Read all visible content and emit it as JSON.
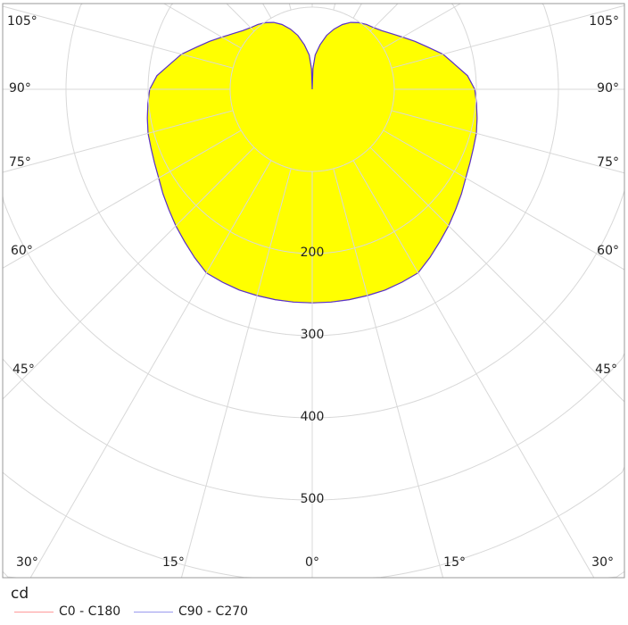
{
  "chart_data": {
    "type": "polar",
    "unit_label": "cd",
    "radial_ticks": [
      200,
      300,
      400,
      500
    ],
    "radial_grid": [
      100,
      200,
      300,
      400,
      500,
      600,
      700
    ],
    "angle_step": 15,
    "angle_labels": {
      "left": [
        "105°",
        "90°",
        "75°",
        "60°",
        "45°",
        "30°",
        "15°"
      ],
      "right": [
        "105°",
        "90°",
        "75°",
        "60°",
        "45°",
        "30°",
        "15°"
      ],
      "bottom_center": "0°"
    },
    "grid": true,
    "legend_placement": "bottom-left",
    "series": [
      {
        "name": "C0 - C180",
        "color": "#ff9a9a",
        "angles": [
          0,
          5,
          10,
          15,
          20,
          25,
          30,
          35,
          40,
          45,
          50,
          55,
          60,
          65,
          70,
          75,
          80,
          85,
          90,
          95,
          100,
          105,
          110,
          115,
          120,
          125,
          130,
          135,
          140,
          145,
          150,
          155,
          160,
          165,
          170,
          175,
          178,
          180
        ],
        "values": [
          260,
          260,
          260,
          260,
          260,
          259,
          258,
          250,
          242,
          235,
          228,
          222,
          216,
          212,
          209,
          207,
          204,
          201,
          198,
          190,
          176,
          165,
          150,
          138,
          127,
          118,
          111,
          106,
          103,
          99,
          94,
          87,
          78,
          68,
          55,
          42,
          25,
          0
        ]
      },
      {
        "name": "C90 - C270",
        "color": "#9a9aee",
        "angles": [
          0,
          5,
          10,
          15,
          20,
          25,
          30,
          35,
          40,
          45,
          50,
          55,
          60,
          65,
          70,
          75,
          80,
          85,
          90,
          95,
          100,
          105,
          110,
          115,
          120,
          125,
          130,
          135,
          140,
          145,
          150,
          155,
          160,
          165,
          170,
          175,
          178,
          180
        ],
        "values": [
          260,
          260,
          260,
          260,
          260,
          259,
          258,
          250,
          242,
          235,
          228,
          222,
          216,
          212,
          209,
          207,
          204,
          201,
          198,
          190,
          176,
          165,
          150,
          138,
          127,
          118,
          111,
          106,
          103,
          99,
          94,
          87,
          78,
          68,
          55,
          42,
          25,
          0
        ]
      }
    ],
    "fill_color": "#ffff00",
    "outline_color": "#5533cc"
  }
}
